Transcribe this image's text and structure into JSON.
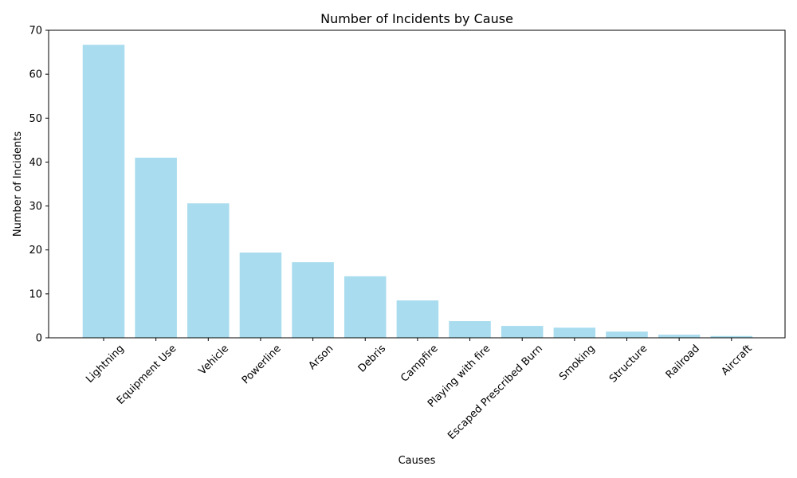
{
  "chart_data": {
    "type": "bar",
    "title": "Number of Incidents by Cause",
    "xlabel": "Causes",
    "ylabel": "Number of Incidents",
    "ylim": [
      0,
      70
    ],
    "yticks": [
      0,
      10,
      20,
      30,
      40,
      50,
      60,
      70
    ],
    "grid": false,
    "bar_color": "#a8dcee",
    "categories": [
      "Lightning",
      "Equipment Use",
      "Vehicle",
      "Powerline",
      "Arson",
      "Debris",
      "Campfire",
      "Playing with fire",
      "Escaped Prescribed Burn",
      "Smoking",
      "Structure",
      "Railroad",
      "Aircraft"
    ],
    "values": [
      66.7,
      41.0,
      30.6,
      19.4,
      17.2,
      14.0,
      8.5,
      3.8,
      2.7,
      2.3,
      1.4,
      0.7,
      0.4
    ]
  }
}
